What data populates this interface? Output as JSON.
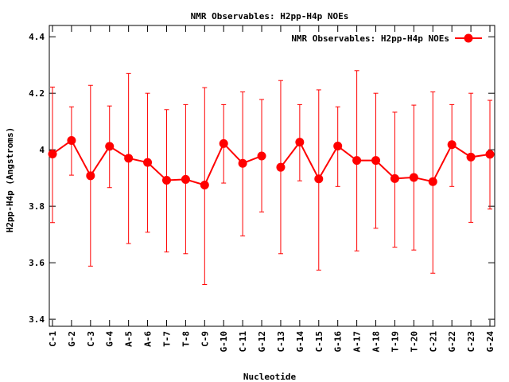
{
  "chart_data": {
    "type": "line",
    "title": "NMR Observables: H2pp-H4p NOEs",
    "xlabel": "Nucleotide",
    "ylabel": "H2pp-H4p (Angstroms)",
    "ylim": [
      3.375,
      4.44
    ],
    "yticks": [
      3.4,
      3.6,
      3.8,
      4,
      4.2,
      4.4
    ],
    "ytick_labels": [
      "3.4",
      "3.6",
      "3.8",
      "4",
      "4.2",
      "4.4"
    ],
    "legend_position": "top-right",
    "grid": false,
    "categories": [
      "C-1",
      "G-2",
      "C-3",
      "G-4",
      "A-5",
      "A-6",
      "T-7",
      "T-8",
      "C-9",
      "G-10",
      "C-11",
      "G-12",
      "C-13",
      "G-14",
      "C-15",
      "G-16",
      "A-17",
      "A-18",
      "T-19",
      "T-20",
      "C-21",
      "G-22",
      "C-23",
      "G-24"
    ],
    "series": [
      {
        "name": "NMR Observables: H2pp-H4p NOEs",
        "color": "#ff0000",
        "segments": [
          [
            0,
            11
          ],
          [
            12,
            23
          ]
        ],
        "values": [
          3.985,
          4.033,
          3.908,
          4.012,
          3.97,
          3.955,
          3.892,
          3.895,
          3.875,
          4.022,
          3.952,
          3.978,
          3.938,
          4.027,
          3.897,
          4.013,
          3.962,
          3.962,
          3.898,
          3.902,
          3.887,
          4.018,
          3.974,
          3.984
        ],
        "err_low": [
          3.742,
          3.91,
          3.588,
          3.866,
          3.668,
          3.708,
          3.638,
          3.632,
          3.523,
          3.882,
          3.695,
          3.78,
          3.632,
          3.89,
          3.574,
          3.87,
          3.642,
          3.722,
          3.655,
          3.645,
          3.563,
          3.87,
          3.743,
          3.79
        ],
        "err_high": [
          4.222,
          4.152,
          4.228,
          4.155,
          4.27,
          4.2,
          4.142,
          4.16,
          4.22,
          4.16,
          4.205,
          4.178,
          4.245,
          4.16,
          4.212,
          4.152,
          4.28,
          4.2,
          4.133,
          4.158,
          4.205,
          4.16,
          4.2,
          4.175
        ]
      }
    ]
  }
}
